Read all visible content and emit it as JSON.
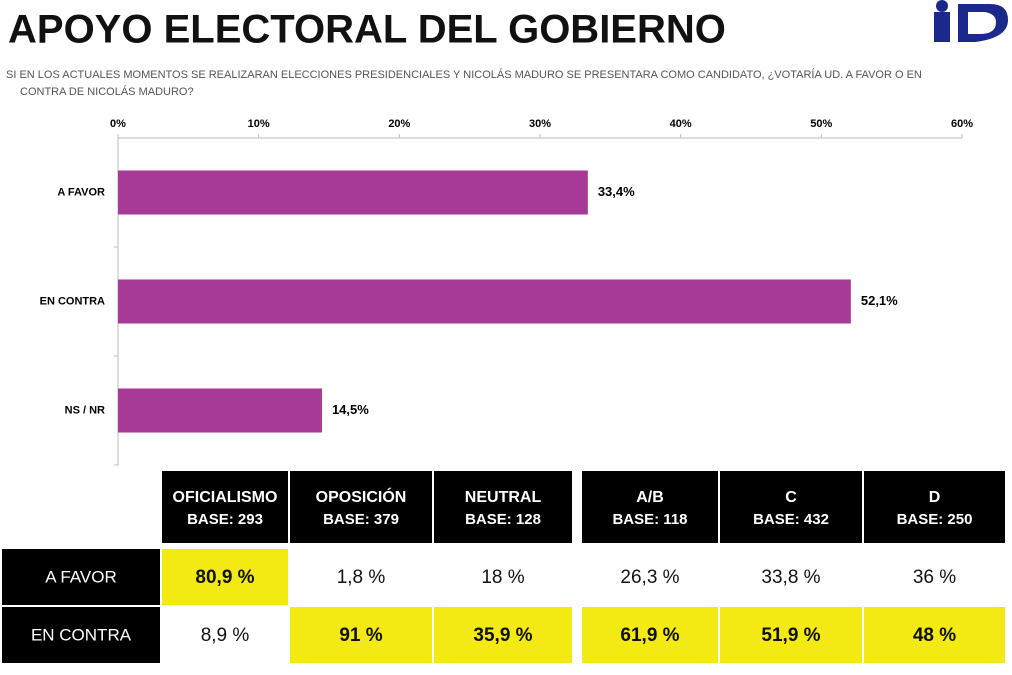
{
  "chart_data": {
    "type": "hbar",
    "title": "APOYO ELECTORAL DEL GOBIERNO",
    "subtitle": [
      "SI EN LOS ACTUALES MOMENTOS SE REALIZARAN ELECCIONES PRESIDENCIALES Y NICOLÁS MADURO SE PRESENTARA COMO CANDIDATO, ¿VOTARÍA UD. A FAVOR O EN",
      "CONTRA DE NICOLÁS MADURO?"
    ],
    "categories": [
      "A FAVOR",
      "EN CONTRA",
      "NS / NR"
    ],
    "values": [
      33.4,
      52.1,
      14.5
    ],
    "value_labels": [
      "33,4%",
      "52,1%",
      "14,5%"
    ],
    "color": "#a63a96",
    "xlim": [
      0,
      60
    ],
    "xticks": [
      {
        "value": 0,
        "label": "0%"
      },
      {
        "value": 10,
        "label": "10%"
      },
      {
        "value": 20,
        "label": "20%"
      },
      {
        "value": 30,
        "label": "30%"
      },
      {
        "value": 40,
        "label": "40%"
      },
      {
        "value": 50,
        "label": "50%"
      },
      {
        "value": 60,
        "label": "60%"
      }
    ]
  },
  "table": {
    "columns": [
      [
        "OFICIALISMO",
        "BASE: 293"
      ],
      [
        "OPOSICIÓN",
        "BASE: 379"
      ],
      [
        "NEUTRAL",
        "BASE: 128"
      ],
      [
        "A/B",
        "BASE:  118"
      ],
      [
        "C",
        "BASE: 432"
      ],
      [
        "D",
        "BASE: 250"
      ]
    ],
    "rows": [
      {
        "label": "A FAVOR",
        "cells": [
          "80,9 %",
          "1,8 %",
          "18 %",
          "26,3 %",
          "33,8 %",
          "36 %"
        ],
        "highlighted": [
          true,
          false,
          false,
          false,
          false,
          false
        ]
      },
      {
        "label": "EN CONTRA",
        "cells": [
          "8,9 %",
          "91 %",
          "35,9 %",
          "61,9 %",
          "51,9 %",
          "48 %"
        ],
        "highlighted": [
          false,
          true,
          true,
          true,
          true,
          true
        ]
      }
    ],
    "highlight_color": "#f2ea12"
  }
}
